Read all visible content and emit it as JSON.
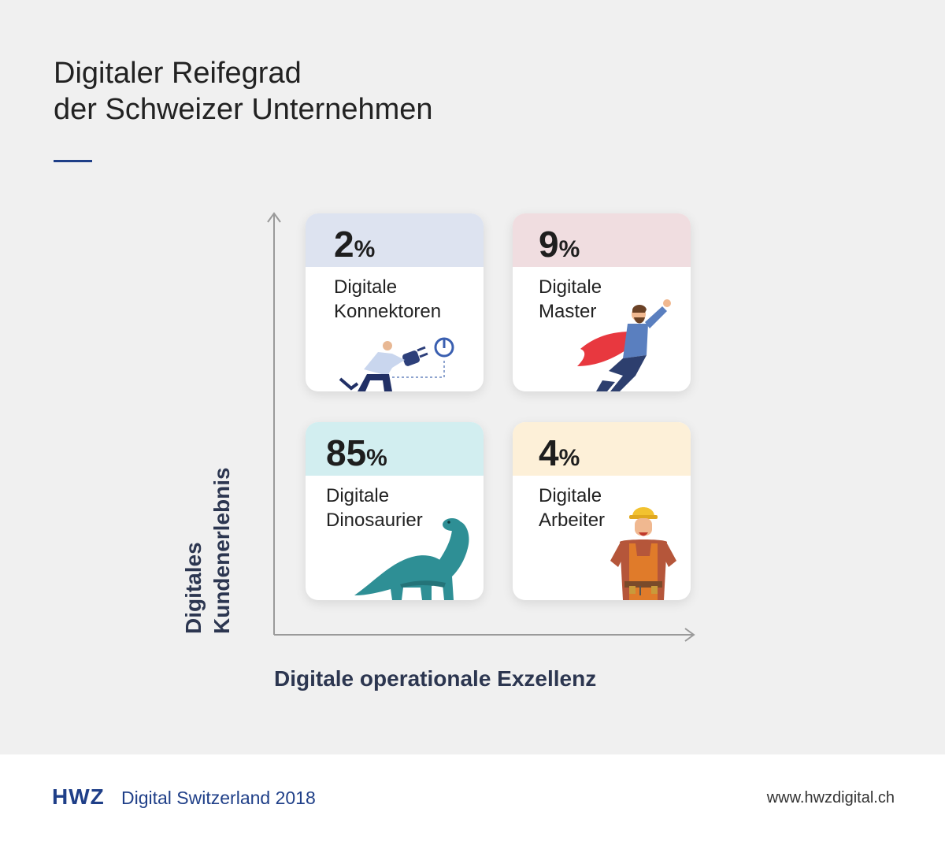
{
  "title": {
    "line1": "Digitaler Reifegrad",
    "line2": "der Schweizer Unternehmen"
  },
  "axes": {
    "y_label_line1": "Digitales",
    "y_label_line2": "Kundenerlebnis",
    "x_label": "Digitale operationale Exzellenz"
  },
  "quadrants": [
    {
      "position": "top-left",
      "value": "2",
      "unit": "%",
      "line1": "Digitale",
      "line2": "Konnektoren",
      "band_color": "#dde3f0",
      "icon": "businessman-plug-icon"
    },
    {
      "position": "top-right",
      "value": "9",
      "unit": "%",
      "line1": "Digitale",
      "line2": "Master",
      "band_color": "#f0dde0",
      "icon": "superhero-icon"
    },
    {
      "position": "bottom-left",
      "value": "85",
      "unit": "%",
      "line1": "Digitale",
      "line2": "Dinosaurier",
      "band_color": "#d2eef0",
      "icon": "dinosaur-icon"
    },
    {
      "position": "bottom-right",
      "value": "4",
      "unit": "%",
      "line1": "Digitale",
      "line2": "Arbeiter",
      "band_color": "#fdf0d8",
      "icon": "construction-worker-icon"
    }
  ],
  "footer": {
    "logo": "HWZ",
    "report": "Digital Switzerland 2018",
    "url": "www.hwzdigital.ch"
  },
  "colors": {
    "brand": "#1f3f88",
    "axis_text": "#2c3650",
    "axis_line": "#9a9a9a"
  }
}
